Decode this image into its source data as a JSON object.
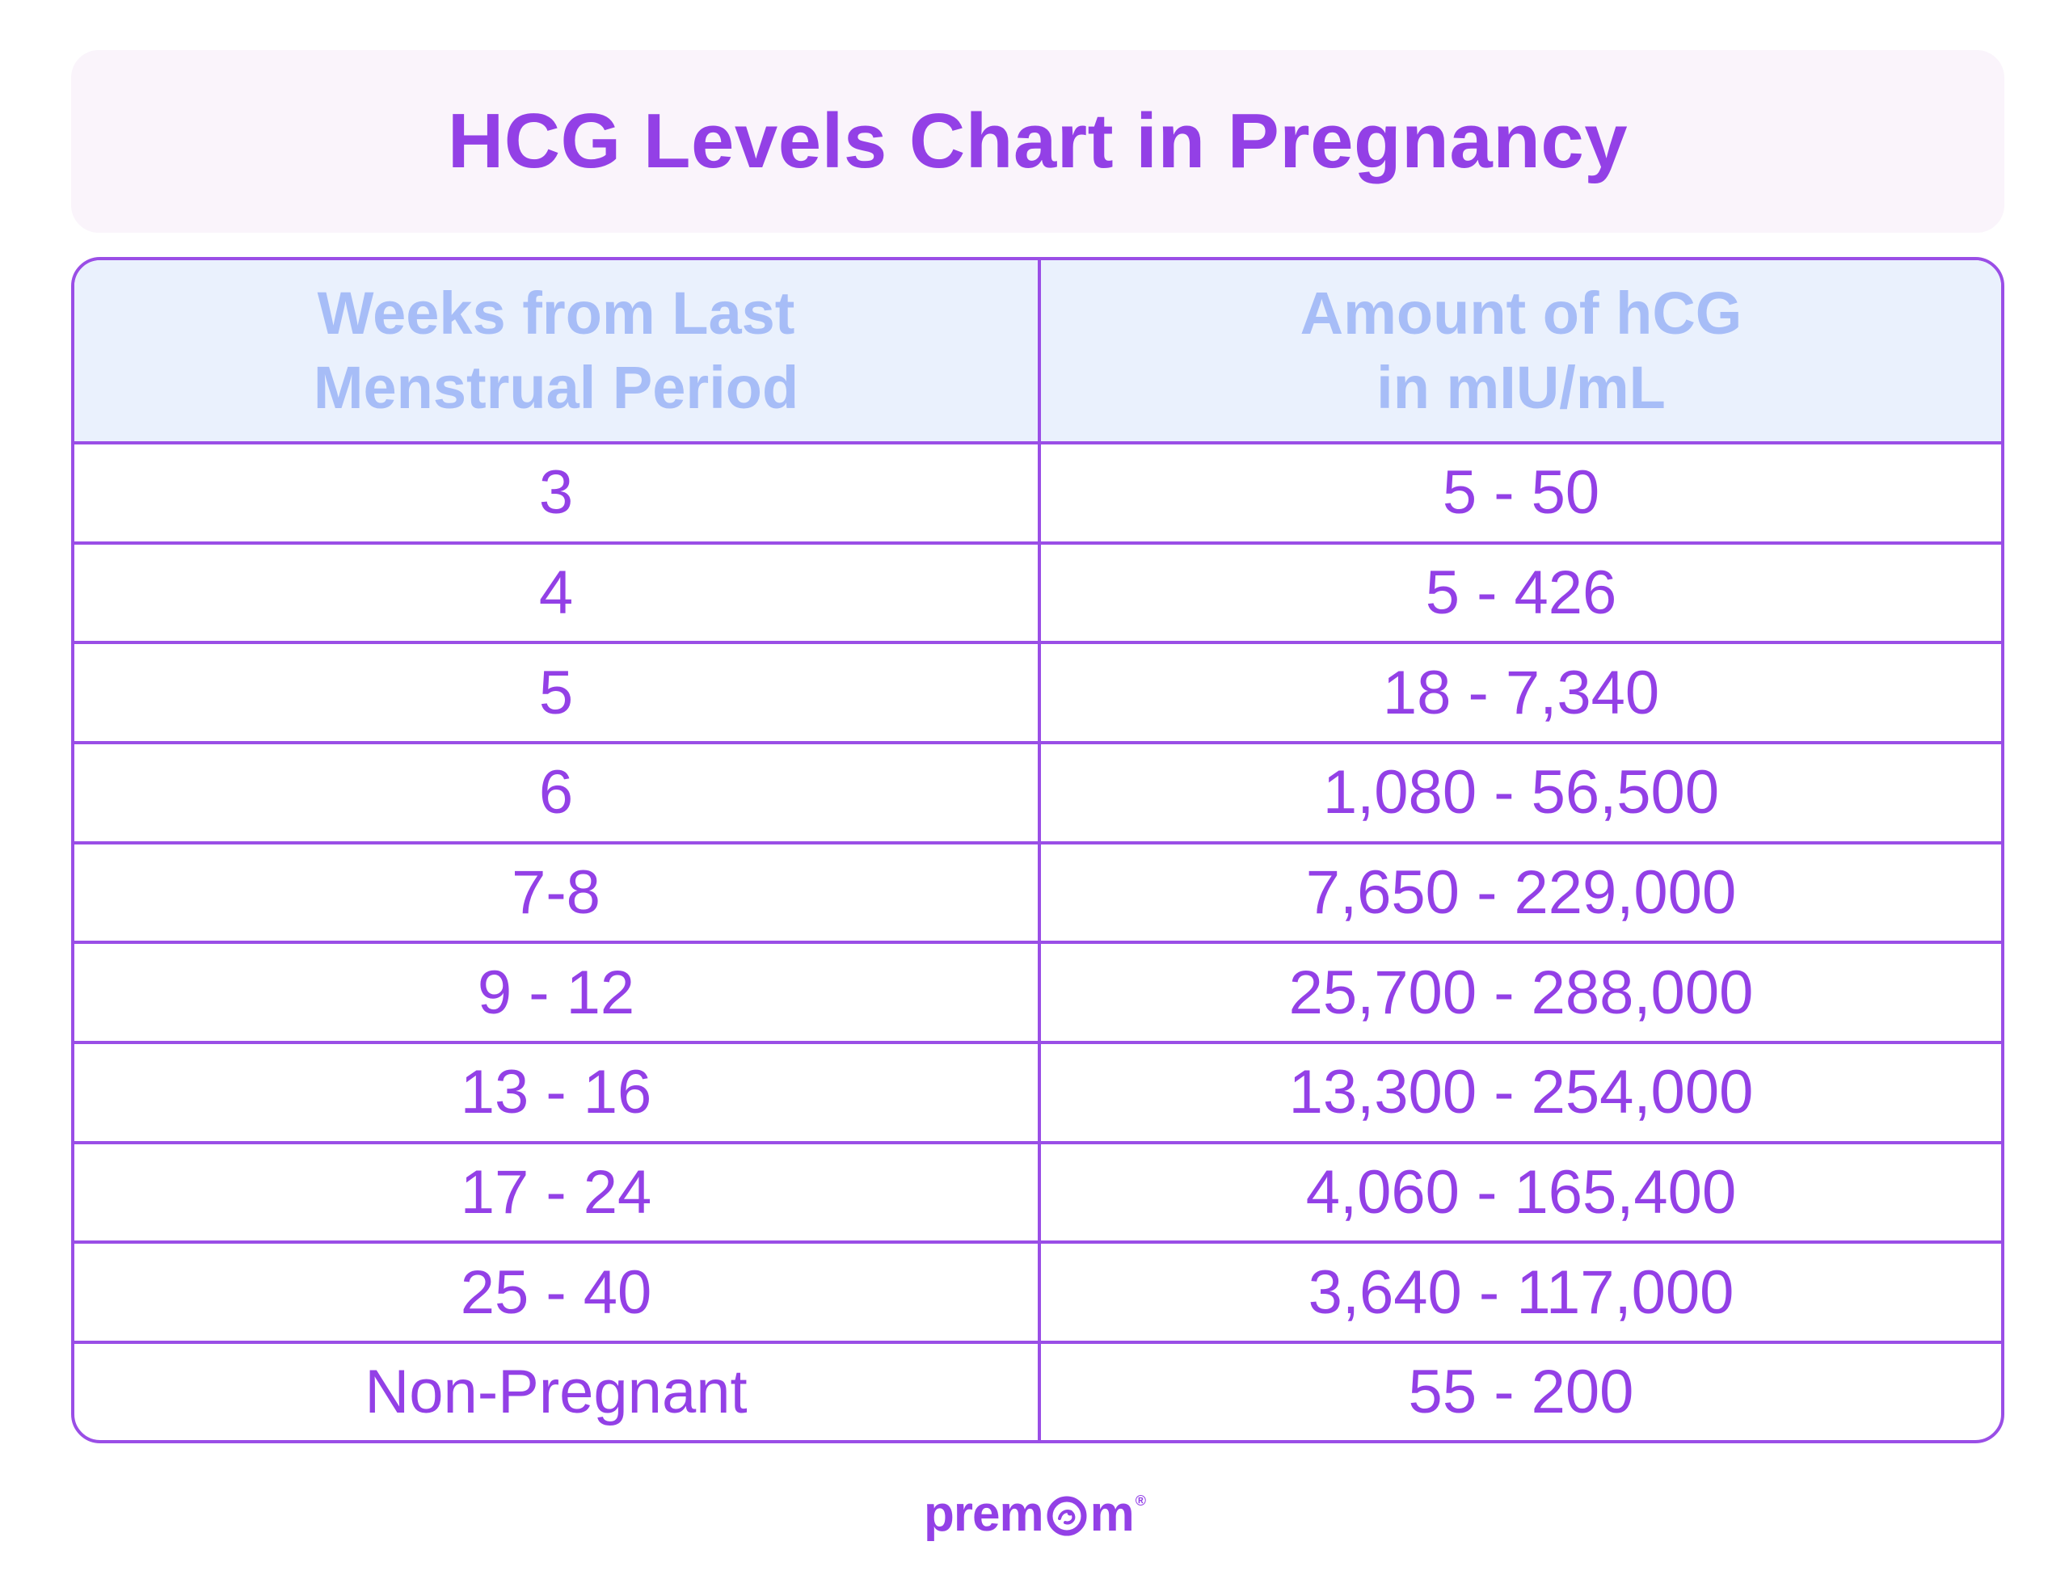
{
  "title": "HCG Levels Chart in Pregnancy",
  "colors": {
    "accent": "#9340e6",
    "header_text": "#a7bdf7",
    "header_bg": "#eaf1fd",
    "title_bg": "#faf4fb"
  },
  "chart_data": {
    "type": "table",
    "title": "HCG Levels Chart in Pregnancy",
    "columns": [
      {
        "line1": "Weeks from Last",
        "line2": "Menstrual Period"
      },
      {
        "line1": "Amount of hCG",
        "line2": "in mIU/mL"
      }
    ],
    "rows": [
      [
        "3",
        "5 - 50"
      ],
      [
        "4",
        "5 - 426"
      ],
      [
        "5",
        "18 - 7,340"
      ],
      [
        "6",
        "1,080 - 56,500"
      ],
      [
        "7-8",
        "7,650 - 229,000"
      ],
      [
        "9 - 12",
        "25,700 - 288,000"
      ],
      [
        "13 - 16",
        "13,300 - 254,000"
      ],
      [
        "17 - 24",
        "4,060 - 165,400"
      ],
      [
        "25 - 40",
        "3,640 - 117,000"
      ],
      [
        "Non-Pregnant",
        "55 - 200"
      ]
    ]
  },
  "logo": {
    "text_before": "prem",
    "text_after": "m",
    "registered": "®",
    "icon": "fetus-in-o-icon"
  }
}
